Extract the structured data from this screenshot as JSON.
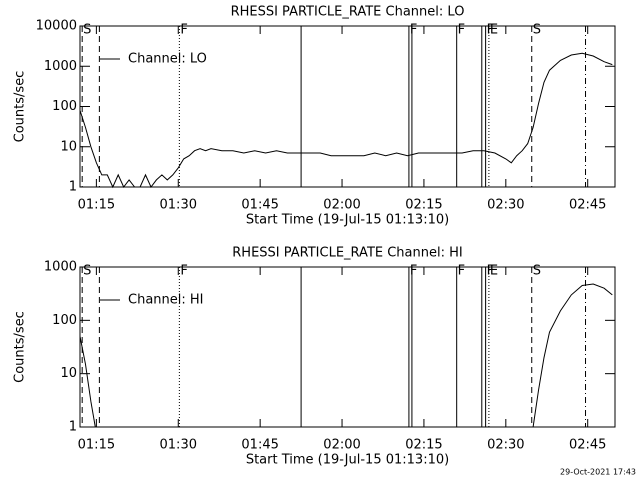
{
  "chart_data": [
    {
      "type": "line",
      "title": "RHESSI PARTICLE_RATE Channel: LO",
      "xlabel": "Start Time (19-Jul-15 01:13:10)",
      "ylabel": "Counts/sec",
      "log_y": true,
      "legend": "upper left",
      "xlim": [
        72,
        170
      ],
      "ylim": [
        1,
        10000
      ],
      "xticks": [
        {
          "value": 75,
          "label": "01:15"
        },
        {
          "value": 90,
          "label": "01:30"
        },
        {
          "value": 105,
          "label": "01:45"
        },
        {
          "value": 120,
          "label": "02:00"
        },
        {
          "value": 135,
          "label": "02:15"
        },
        {
          "value": 150,
          "label": "02:30"
        },
        {
          "value": 165,
          "label": "02:45"
        }
      ],
      "yticks": [
        1,
        10,
        100,
        1000,
        10000
      ],
      "annotations": [
        {
          "x": 72.4,
          "label": "S",
          "style": "dashed"
        },
        {
          "x": 75.55,
          "style": "dashed"
        },
        {
          "x": 90.2,
          "label": "F",
          "style": "dotted"
        },
        {
          "x": 112.5,
          "style": "solid"
        },
        {
          "x": 132.25,
          "label": "F",
          "style": "solid"
        },
        {
          "x": 132.8,
          "style": "solid"
        },
        {
          "x": 141.0,
          "label": "F",
          "style": "solid"
        },
        {
          "x": 145.6,
          "style": "solid"
        },
        {
          "x": 146.3,
          "label": "F",
          "style": "solid"
        },
        {
          "x": 146.9,
          "label": "E",
          "style": "dotted"
        },
        {
          "x": 154.75,
          "label": "S",
          "style": "dashed"
        },
        {
          "x": 164.6,
          "style": "dashdot"
        }
      ],
      "x": [
        72,
        73,
        74,
        75,
        76,
        77,
        78,
        79,
        80,
        81,
        82,
        83,
        84,
        85,
        86,
        87,
        88,
        89,
        90,
        91,
        92,
        93,
        94,
        95,
        96,
        98,
        100,
        102,
        104,
        106,
        108,
        110,
        112,
        114,
        116,
        118,
        120,
        122,
        124,
        126,
        128,
        130,
        132,
        134,
        136,
        138,
        140,
        142,
        144,
        146,
        148,
        150,
        151,
        152,
        153,
        154,
        155,
        156,
        157,
        158,
        160,
        162,
        164,
        166,
        168,
        169.5
      ],
      "series": [
        {
          "name": "Channel: LO",
          "color": "#000000",
          "values": [
            80,
            30,
            10,
            4,
            2,
            2,
            1,
            2,
            1,
            1.5,
            1,
            1,
            2,
            1,
            1.5,
            2,
            1.5,
            2,
            3,
            5,
            6,
            8,
            9,
            8,
            9,
            8,
            8,
            7,
            8,
            7,
            8,
            7,
            7,
            7,
            7,
            6,
            6,
            6,
            6,
            7,
            6,
            7,
            6,
            7,
            7,
            7,
            7,
            7,
            8,
            8,
            7,
            5,
            4,
            6,
            8,
            12,
            30,
            120,
            400,
            800,
            1400,
            1900,
            2100,
            1800,
            1300,
            1100
          ]
        }
      ]
    },
    {
      "type": "line",
      "title": "RHESSI PARTICLE_RATE Channel: HI",
      "xlabel": "Start Time (19-Jul-15 01:13:10)",
      "ylabel": "Counts/sec",
      "log_y": true,
      "legend": "upper left",
      "xlim": [
        72,
        170
      ],
      "ylim": [
        1,
        1000
      ],
      "xticks": [
        {
          "value": 75,
          "label": "01:15"
        },
        {
          "value": 90,
          "label": "01:30"
        },
        {
          "value": 105,
          "label": "01:45"
        },
        {
          "value": 120,
          "label": "02:00"
        },
        {
          "value": 135,
          "label": "02:15"
        },
        {
          "value": 150,
          "label": "02:30"
        },
        {
          "value": 165,
          "label": "02:45"
        }
      ],
      "yticks": [
        1,
        10,
        100,
        1000
      ],
      "annotations": [
        {
          "x": 72.4,
          "label": "S",
          "style": "dashed"
        },
        {
          "x": 75.55,
          "style": "dashed"
        },
        {
          "x": 90.2,
          "label": "F",
          "style": "dotted"
        },
        {
          "x": 112.5,
          "style": "solid"
        },
        {
          "x": 132.25,
          "label": "F",
          "style": "solid"
        },
        {
          "x": 132.8,
          "style": "solid"
        },
        {
          "x": 141.0,
          "label": "F",
          "style": "solid"
        },
        {
          "x": 145.6,
          "style": "solid"
        },
        {
          "x": 146.3,
          "label": "F",
          "style": "solid"
        },
        {
          "x": 146.9,
          "label": "E",
          "style": "dotted"
        },
        {
          "x": 154.75,
          "label": "S",
          "style": "dashed"
        },
        {
          "x": 164.6,
          "style": "dashdot"
        }
      ],
      "x": [
        72,
        73,
        74,
        74.8,
        100,
        155,
        156,
        157,
        158,
        160,
        162,
        164,
        166,
        168,
        169.5
      ],
      "series": [
        {
          "name": "Channel: HI",
          "color": "#000000",
          "values": [
            50,
            15,
            3,
            1,
            null,
            1,
            5,
            20,
            60,
            150,
            300,
            450,
            480,
            400,
            300
          ]
        }
      ]
    }
  ],
  "timestamp": "29-Oct-2021 17:43"
}
